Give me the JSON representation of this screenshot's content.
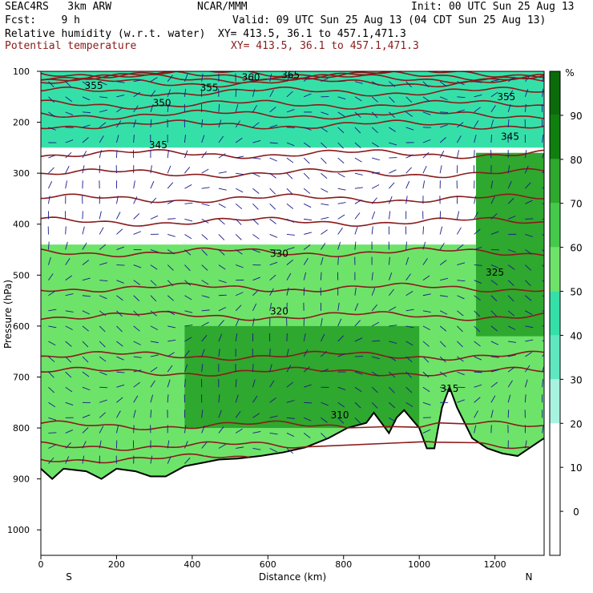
{
  "header": {
    "project": "SEAC4RS   3km ARW",
    "center": "NCAR/MMM",
    "init": "Init: 00 UTC Sun 25 Aug 13",
    "fcst": "Fcst:    9 h",
    "valid": "Valid: 09 UTC Sun 25 Aug 13 (04 CDT Sun 25 Aug 13)",
    "field1": "Relative humidity (w.r.t. water)",
    "xy1": "XY= 413.5, 36.1 to 457.1,471.3",
    "field2": "Potential temperature",
    "xy2": "XY= 413.5, 36.1 to 457.1,471.3"
  },
  "colors": {
    "isentrope": "#8b1a1a",
    "wind_vector": "#1a1a8c",
    "terrain": "#000000"
  },
  "chart_data": {
    "type": "heatmap",
    "title": "Relative humidity (w.r.t. water)",
    "xlabel": "Distance (km)",
    "ylabel": "Pressure (hPa)",
    "xlim": [
      0,
      1330
    ],
    "ylim": [
      1050,
      100
    ],
    "x_ticks": [
      "0",
      "200",
      "400",
      "600",
      "800",
      "1000",
      "1200"
    ],
    "y_ticks": [
      "100",
      "200",
      "300",
      "400",
      "500",
      "600",
      "700",
      "800",
      "900",
      "1000"
    ],
    "x_end_labels": {
      "left": "S",
      "right": "N"
    },
    "colorbar": {
      "unit": "%",
      "levels": [
        {
          "label": "90",
          "color": "#0f7f0f"
        },
        {
          "label": "80",
          "color": "#2ea82e"
        },
        {
          "label": "70",
          "color": "#45c94a"
        },
        {
          "label": "60",
          "color": "#6de36a"
        },
        {
          "label": "50",
          "color": "#35e0a8"
        },
        {
          "label": "40",
          "color": "#5fe8c0"
        },
        {
          "label": "30",
          "color": "#a8f3e0"
        },
        {
          "label": "20",
          "color": "#ffffff"
        },
        {
          "label": "10",
          "color": "#ffffff"
        },
        {
          "label": "0",
          "color": "#ffffff"
        }
      ]
    },
    "isentropes": [
      {
        "label": "365",
        "x": 660,
        "p": 107
      },
      {
        "label": "360",
        "x": 555,
        "p": 112
      },
      {
        "label": "355",
        "x": 140,
        "p": 128
      },
      {
        "label": "355",
        "x": 445,
        "p": 132
      },
      {
        "label": "355",
        "x": 1230,
        "p": 150
      },
      {
        "label": "350",
        "x": 320,
        "p": 162
      },
      {
        "label": "345",
        "x": 310,
        "p": 245
      },
      {
        "label": "345",
        "x": 1240,
        "p": 228
      },
      {
        "label": "330",
        "x": 630,
        "p": 458
      },
      {
        "label": "325",
        "x": 1200,
        "p": 495
      },
      {
        "label": "320",
        "x": 630,
        "p": 571
      },
      {
        "label": "315",
        "x": 1080,
        "p": 723
      },
      {
        "label": "310",
        "x": 790,
        "p": 775
      }
    ],
    "theta_levels_hPa": [
      104,
      109,
      114,
      122,
      140,
      165,
      185,
      205,
      262,
      300,
      350,
      395,
      455,
      525,
      580,
      658,
      690,
      795,
      835,
      860
    ],
    "terrain_hPa": [
      [
        0,
        880
      ],
      [
        30,
        900
      ],
      [
        60,
        880
      ],
      [
        120,
        885
      ],
      [
        160,
        900
      ],
      [
        200,
        880
      ],
      [
        250,
        885
      ],
      [
        290,
        895
      ],
      [
        330,
        895
      ],
      [
        380,
        875
      ],
      [
        430,
        868
      ],
      [
        470,
        862
      ],
      [
        520,
        860
      ],
      [
        580,
        855
      ],
      [
        640,
        848
      ],
      [
        700,
        838
      ],
      [
        760,
        820
      ],
      [
        810,
        800
      ],
      [
        860,
        790
      ],
      [
        880,
        770
      ],
      [
        900,
        790
      ],
      [
        920,
        810
      ],
      [
        940,
        780
      ],
      [
        960,
        765
      ],
      [
        1000,
        800
      ],
      [
        1020,
        840
      ],
      [
        1040,
        840
      ],
      [
        1060,
        760
      ],
      [
        1080,
        720
      ],
      [
        1100,
        760
      ],
      [
        1140,
        820
      ],
      [
        1180,
        840
      ],
      [
        1220,
        850
      ],
      [
        1260,
        855
      ],
      [
        1300,
        835
      ],
      [
        1330,
        820
      ]
    ],
    "rh_regions": [
      {
        "x": [
          0,
          1330
        ],
        "p": [
          100,
          250
        ],
        "rh": 55
      },
      {
        "x": [
          0,
          1330
        ],
        "p": [
          250,
          440
        ],
        "rh": 20
      },
      {
        "x": [
          0,
          1330
        ],
        "p": [
          440,
          900
        ],
        "rh": 65
      },
      {
        "x": [
          380,
          1000
        ],
        "p": [
          600,
          800
        ],
        "rh": 85
      },
      {
        "x": [
          1150,
          1330
        ],
        "p": [
          260,
          620
        ],
        "rh": 80
      }
    ]
  }
}
